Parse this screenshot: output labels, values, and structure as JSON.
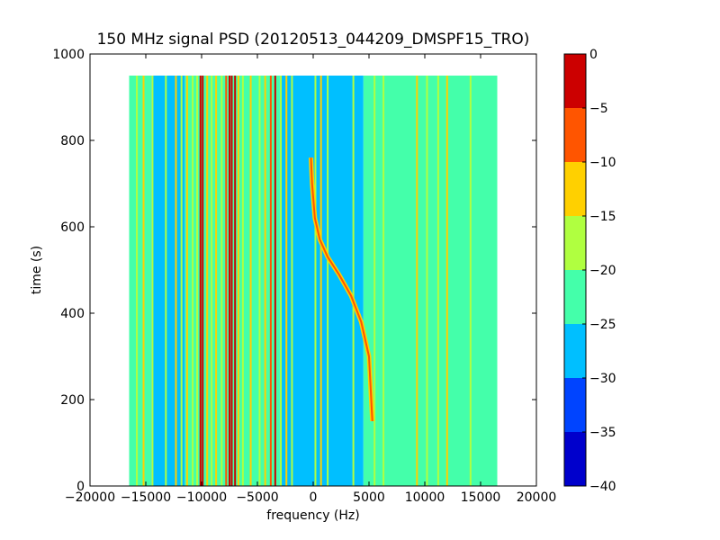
{
  "chart_data": {
    "type": "heatmap",
    "title": "150 MHz signal PSD (20120513_044209_DMSPF15_TRO)",
    "xlabel": "frequency (Hz)",
    "ylabel": "time (s)",
    "xlim": [
      -20000,
      20000
    ],
    "ylim": [
      0,
      1000
    ],
    "xticks": [
      -20000,
      -15000,
      -10000,
      -5000,
      0,
      5000,
      10000,
      15000,
      20000
    ],
    "xtick_labels": [
      "−20000",
      "−15000",
      "−10000",
      "−5000",
      "0",
      "5000",
      "10000",
      "15000",
      "20000"
    ],
    "yticks": [
      0,
      200,
      400,
      600,
      800,
      1000
    ],
    "ytick_labels": [
      "0",
      "200",
      "400",
      "600",
      "800",
      "1000"
    ],
    "data_extent": {
      "x": [
        -16500,
        16500
      ],
      "y": [
        0,
        950
      ]
    },
    "colorbar": {
      "levels": [
        -40,
        -35,
        -30,
        -25,
        -20,
        -15,
        -10,
        -5,
        0
      ],
      "tick_labels": [
        "−40",
        "−35",
        "−30",
        "−25",
        "−20",
        "−15",
        "−10",
        "−5",
        "0"
      ],
      "colors": [
        "#0000cc",
        "#0044ff",
        "#00bfff",
        "#44ffaa",
        "#b0ff40",
        "#ffd000",
        "#ff5500",
        "#cc0000"
      ]
    },
    "background_bands": [
      {
        "x": [
          -16500,
          -14500
        ],
        "value": -25
      },
      {
        "x": [
          -14500,
          -11500
        ],
        "value": -30
      },
      {
        "x": [
          -11500,
          -3000
        ],
        "value": -25
      },
      {
        "x": [
          -3000,
          0
        ],
        "value": -30
      },
      {
        "x": [
          0,
          4500
        ],
        "value": -30
      },
      {
        "x": [
          4500,
          16500
        ],
        "value": -25
      }
    ],
    "vertical_lines": [
      {
        "x": -15800,
        "value": -20
      },
      {
        "x": -15200,
        "value": -15
      },
      {
        "x": -14400,
        "value": -20
      },
      {
        "x": -13200,
        "value": -20
      },
      {
        "x": -12300,
        "value": -15
      },
      {
        "x": -11800,
        "value": -20
      },
      {
        "x": -11300,
        "value": -15
      },
      {
        "x": -10800,
        "value": -20
      },
      {
        "x": -10400,
        "value": -20
      },
      {
        "x": -10100,
        "value": -5
      },
      {
        "x": -9900,
        "value": 0
      },
      {
        "x": -9500,
        "value": -15
      },
      {
        "x": -9100,
        "value": -20
      },
      {
        "x": -8700,
        "value": -15
      },
      {
        "x": -8200,
        "value": -20
      },
      {
        "x": -7800,
        "value": -10
      },
      {
        "x": -7500,
        "value": -5
      },
      {
        "x": -7300,
        "value": 0
      },
      {
        "x": -7000,
        "value": -5
      },
      {
        "x": -6700,
        "value": -15
      },
      {
        "x": -6300,
        "value": -20
      },
      {
        "x": -5600,
        "value": -15
      },
      {
        "x": -4800,
        "value": -20
      },
      {
        "x": -4300,
        "value": -15
      },
      {
        "x": -3800,
        "value": -10
      },
      {
        "x": -3400,
        "value": -5
      },
      {
        "x": -2900,
        "value": -20
      },
      {
        "x": -2400,
        "value": -15
      },
      {
        "x": -1900,
        "value": -20
      },
      {
        "x": 200,
        "value": -20
      },
      {
        "x": 700,
        "value": -15
      },
      {
        "x": 1300,
        "value": -20
      },
      {
        "x": 3600,
        "value": -20
      },
      {
        "x": 5500,
        "value": -20
      },
      {
        "x": 6300,
        "value": -20
      },
      {
        "x": 9300,
        "value": -15
      },
      {
        "x": 10200,
        "value": -20
      },
      {
        "x": 11200,
        "value": -20
      },
      {
        "x": 12000,
        "value": -15
      },
      {
        "x": 14100,
        "value": -20
      }
    ],
    "signal_trace": {
      "value": -10,
      "points": [
        {
          "x": 5300,
          "y": 150
        },
        {
          "x": 5000,
          "y": 300
        },
        {
          "x": 4300,
          "y": 380
        },
        {
          "x": 3400,
          "y": 440
        },
        {
          "x": 2300,
          "y": 490
        },
        {
          "x": 1300,
          "y": 530
        },
        {
          "x": 600,
          "y": 570
        },
        {
          "x": 150,
          "y": 620
        },
        {
          "x": -100,
          "y": 700
        },
        {
          "x": -200,
          "y": 760
        }
      ]
    }
  }
}
